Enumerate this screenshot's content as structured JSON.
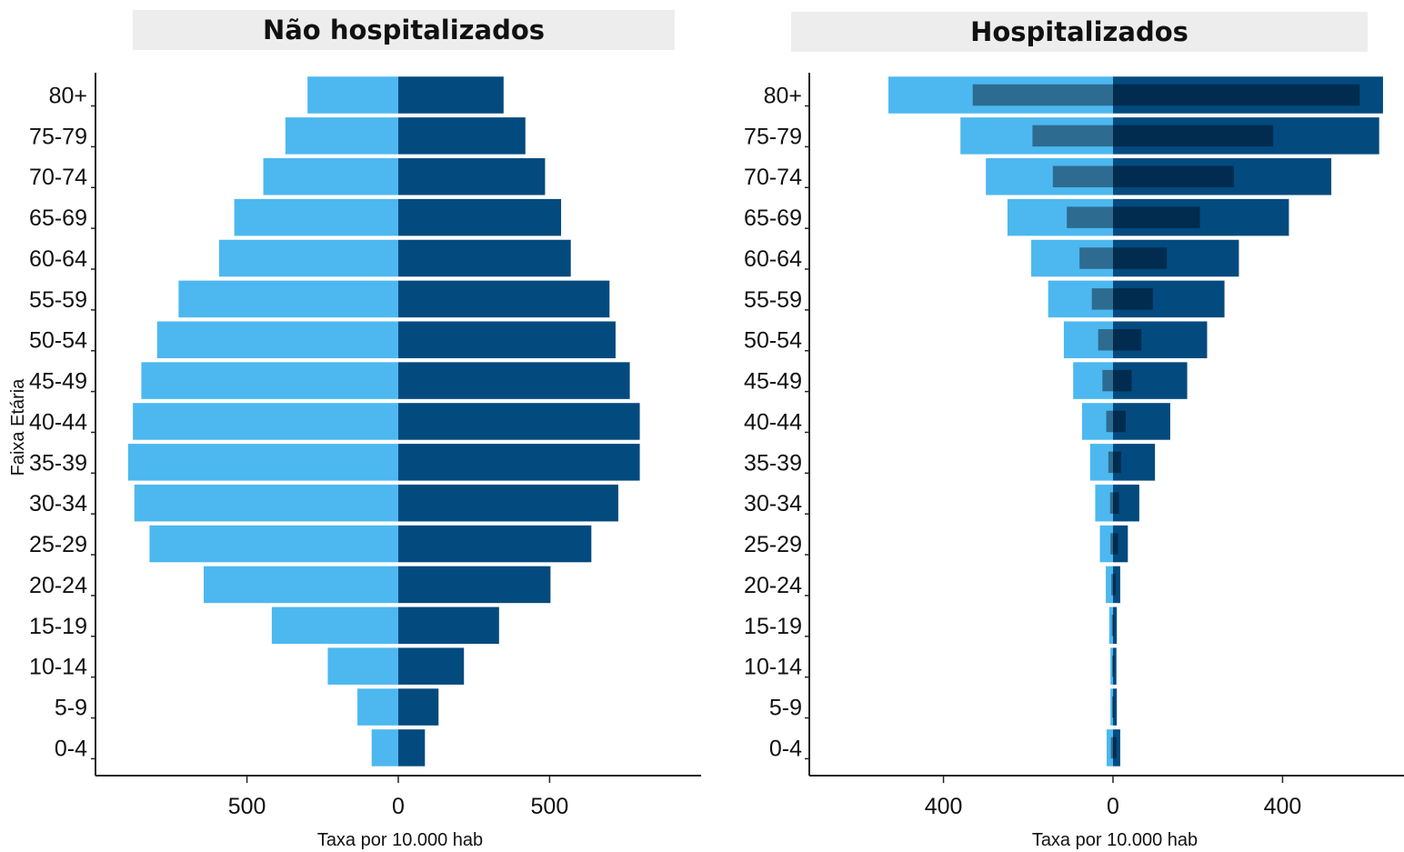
{
  "chart_data": [
    {
      "type": "bar",
      "title": "Não hospitalizados",
      "ylabel": "Faixa Etária",
      "xlabel": "Taxa por 10.000 hab",
      "xticks": [
        {
          "value": -500,
          "label": "500"
        },
        {
          "value": 0,
          "label": "0"
        },
        {
          "value": 500,
          "label": "500"
        }
      ],
      "xlim": [
        -1000,
        1000
      ],
      "categories": [
        "0-4",
        "5-9",
        "10-14",
        "15-19",
        "20-24",
        "25-29",
        "30-34",
        "35-39",
        "40-44",
        "45-49",
        "50-54",
        "55-59",
        "60-64",
        "65-69",
        "70-74",
        "75-79",
        "80+"
      ],
      "series": [
        {
          "color": "#4cb8ef",
          "side": "left",
          "values": [
            88,
            135,
            233,
            418,
            643,
            822,
            872,
            893,
            877,
            849,
            797,
            726,
            592,
            542,
            446,
            373,
            300
          ]
        },
        {
          "color": "#034a7e",
          "side": "right",
          "values": [
            88,
            133,
            217,
            333,
            503,
            638,
            727,
            798,
            798,
            765,
            718,
            698,
            570,
            538,
            485,
            420,
            348
          ]
        }
      ]
    },
    {
      "type": "bar",
      "title": "Hospitalizados",
      "xlabel": "Taxa por 10.000 hab",
      "xticks": [
        {
          "value": -400,
          "label": "400"
        },
        {
          "value": 0,
          "label": "0"
        },
        {
          "value": 400,
          "label": "400"
        }
      ],
      "xlim": [
        -715,
        715
      ],
      "categories": [
        "0-4",
        "5-9",
        "10-14",
        "15-19",
        "20-24",
        "25-29",
        "30-34",
        "35-39",
        "40-44",
        "45-49",
        "50-54",
        "55-59",
        "60-64",
        "65-69",
        "70-74",
        "75-79",
        "80+"
      ],
      "series": [
        {
          "color": "#4cb8ef",
          "side": "left",
          "values": [
            15,
            6,
            6,
            9,
            17,
            31,
            42,
            54,
            73,
            94,
            116,
            153,
            193,
            249,
            300,
            360,
            530
          ]
        },
        {
          "color": "#034a7e",
          "side": "right",
          "values": [
            17,
            9,
            8,
            9,
            17,
            35,
            62,
            99,
            135,
            175,
            222,
            263,
            297,
            415,
            515,
            628,
            637
          ]
        },
        {
          "color": "#2e6b91",
          "side": "left",
          "values": [
            5,
            2,
            2,
            3,
            4,
            6,
            7,
            11,
            16,
            25,
            35,
            50,
            79,
            109,
            142,
            190,
            331
          ]
        },
        {
          "color": "#012c4f",
          "side": "right",
          "values": [
            8,
            3,
            3,
            3,
            6,
            12,
            14,
            19,
            30,
            44,
            67,
            94,
            127,
            205,
            285,
            378,
            582
          ]
        }
      ]
    }
  ]
}
